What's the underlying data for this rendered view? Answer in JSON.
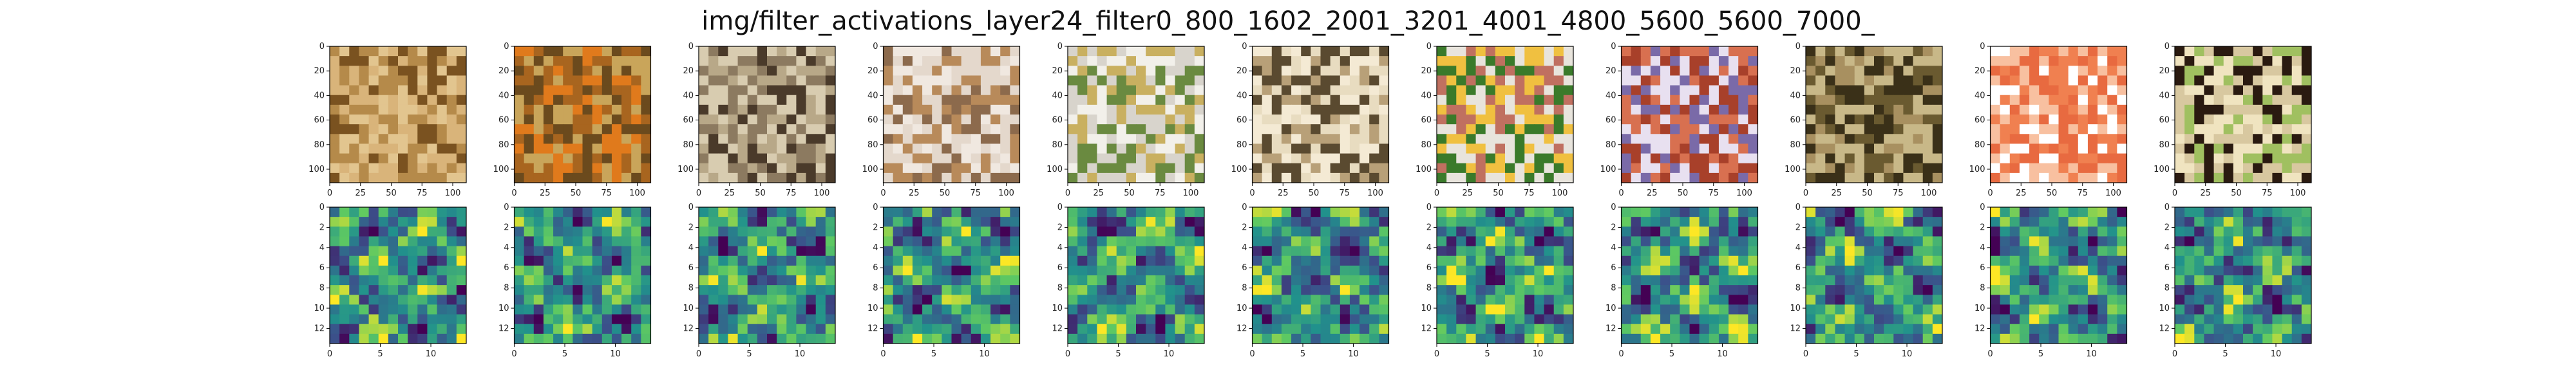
{
  "figure": {
    "title": "img/filter_activations_layer24_filter0_800_1602_2001_3201_4001_4800_5600_5600_7000_"
  },
  "chart_data": {
    "type": "heatmap",
    "title": "img/filter_activations_layer24_filter0_800_1602_2001_3201_4001_4800_5600_5600_7000_",
    "image_row": {
      "x_ticks": [
        0,
        25,
        50,
        75,
        100
      ],
      "y_ticks": [
        0,
        20,
        40,
        60,
        80,
        100
      ],
      "xlim": [
        0,
        111
      ],
      "ylim": [
        111,
        0
      ],
      "panels": [
        {
          "icon": "bread-photo",
          "palette": [
            "#b58a4a",
            "#e2c58f",
            "#7a5220",
            "#d9b47a"
          ]
        },
        {
          "icon": "kiwi-orange-photo",
          "palette": [
            "#a8651f",
            "#e07a1c",
            "#6b4a1d",
            "#c9a55a"
          ]
        },
        {
          "icon": "cheese-platter-photo",
          "palette": [
            "#8c7a60",
            "#d8ccb0",
            "#4a3a2a",
            "#b8a888"
          ]
        },
        {
          "icon": "macaron-photo",
          "palette": [
            "#e4d8cc",
            "#8c6a4c",
            "#b88a5a",
            "#f0e8e0"
          ]
        },
        {
          "icon": "deviled-egg-plate-photo",
          "palette": [
            "#f2f0ea",
            "#d8d4cc",
            "#c9b060",
            "#6a8a40"
          ]
        },
        {
          "icon": "french-fries-photo",
          "palette": [
            "#e8dcc0",
            "#f4ead4",
            "#b8a078",
            "#5a4a30"
          ]
        },
        {
          "icon": "steak-broccoli-plate-photo",
          "palette": [
            "#e8e4dc",
            "#3a7a2a",
            "#c07060",
            "#f0c040"
          ]
        },
        {
          "icon": "spaghetti-photo",
          "palette": [
            "#a8402a",
            "#7a6aa8",
            "#d87050",
            "#e8e0f0"
          ]
        },
        {
          "icon": "fried-rice-photo",
          "palette": [
            "#6a5a30",
            "#a89060",
            "#3a3018",
            "#c8b888"
          ]
        },
        {
          "icon": "salmon-sashimi-photo",
          "palette": [
            "#f08050",
            "#f8c0a0",
            "#ffffff",
            "#e86a40"
          ]
        },
        {
          "icon": "miso-soup-photo",
          "palette": [
            "#d8c8a0",
            "#f0e4c0",
            "#2a1a10",
            "#a0c060"
          ]
        }
      ]
    },
    "heatmap_row": {
      "x_ticks": [
        0,
        5,
        10
      ],
      "y_ticks": [
        0,
        2,
        4,
        6,
        8,
        10,
        12
      ],
      "grid_size": 14,
      "colormap": "viridis",
      "colors": [
        "#440154",
        "#3b528b",
        "#21918c",
        "#5ec962",
        "#fde725"
      ]
    }
  }
}
